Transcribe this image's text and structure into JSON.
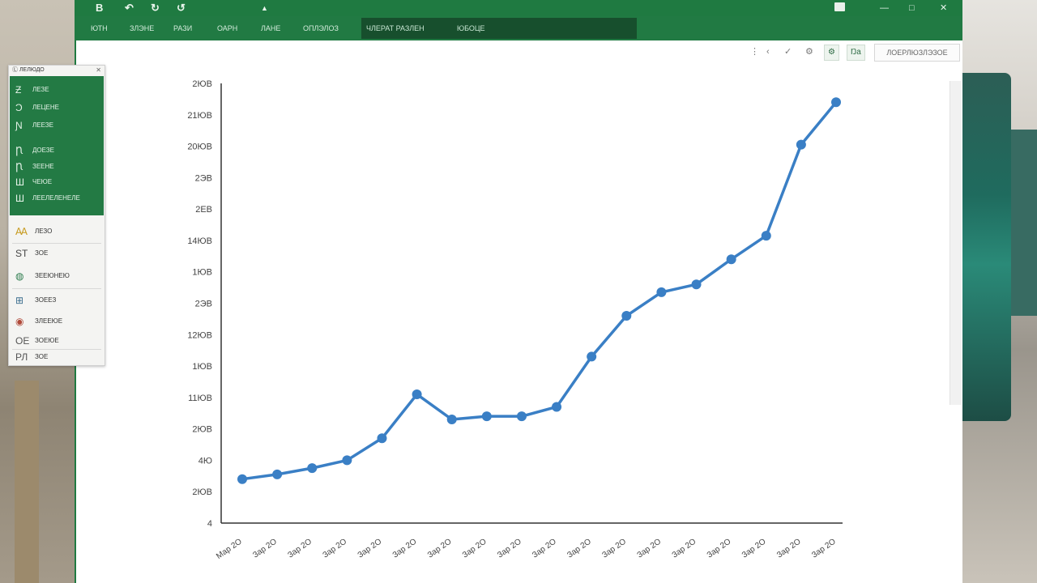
{
  "colors": {
    "ribbon_green": "#217a43",
    "selected_tab": "#174f2d",
    "series_line": "#3a7fc5",
    "axis": "#333333"
  },
  "titlebar": {
    "quick_access": [
      "B",
      "↶",
      "↻",
      "↺"
    ],
    "window_controls": [
      "—",
      "□",
      "✕"
    ]
  },
  "ribbon": {
    "tabs": [
      "ЮТН",
      "ЗЛЭНЕ",
      "РАЗИ",
      "ОАРН",
      "ЛАНЕ",
      "ОПЛЭЛОЗ"
    ],
    "selected_group": "ЧЛЕРАТ РАЗЛЕН",
    "selected_group_2": "ЮБОЦЕ"
  },
  "toolbar": {
    "icons": [
      "more-icon",
      "back-icon",
      "check-icon",
      "settings-icon"
    ],
    "button_1": "⚙",
    "button_2": "Ŋa",
    "field": "ЛОЕРЛЮЗЛЭЗОЕ"
  },
  "side_panel": {
    "header": "Ⓛ ЛЕЛЮДО",
    "green_items": [
      {
        "icon": "Ƶ",
        "label": "ЛЕЗЕ"
      },
      {
        "icon": "Ɔ",
        "label": "ЛЕЦЕНЕ"
      },
      {
        "icon": "Ɲ",
        "label": "ЛЕЕЗЕ"
      },
      {
        "icon": "Ꞃ",
        "label": "ДОЕЗЕ"
      },
      {
        "icon": "Ꞃ",
        "label": "ЗЕЕНЕ"
      },
      {
        "icon": "Ш",
        "label": "ЧЕЮЕ"
      },
      {
        "icon": "Ш",
        "label": "ЛЕЕЛЕЛЕНЕЛЕ"
      }
    ],
    "white_items": [
      {
        "icon": "Ꜳ",
        "label": "ЛЕЗО",
        "color": "#c79a1e"
      },
      {
        "icon": "ST",
        "label": "ЗОЕ",
        "color": "#444444"
      },
      {
        "icon": "◍",
        "label": "ЗЕЕЮНЕЮ",
        "color": "#2e7d4f"
      },
      {
        "icon": "⊞",
        "label": "ЗОЕЕЗ",
        "color": "#3c6e8f"
      },
      {
        "icon": "◉",
        "label": "ЗЛЕЕЮЕ",
        "color": "#b04a3a"
      },
      {
        "icon": "ОЕ",
        "label": "ЗОЕЮЕ",
        "color": "#555555"
      },
      {
        "icon": "РЛ",
        "label": "ЗОЕ",
        "color": "#555555"
      }
    ]
  },
  "chart_data": {
    "type": "line",
    "title": "",
    "xlabel": "",
    "ylabel": "",
    "grid": false,
    "x": [
      "Мар 2О",
      "Зар 2О",
      "Зар 2О",
      "Зар 2О",
      "Зар 2О",
      "Зар 2О",
      "Зар 2О",
      "Зар 2О",
      "Зар 2О",
      "Зар 2О",
      "Зар 2О",
      "Зар 2О",
      "Зар 2О",
      "Зар 2О",
      "Зар 2О",
      "Зар 2О",
      "Зар 2О",
      "Зар 2О"
    ],
    "y_ticks": [
      "2ЮВ",
      "21ЮВ",
      "20ЮВ",
      "2ЭВ",
      "2ЕВ",
      "14ЮВ",
      "1ЮВ",
      "2ЭВ",
      "12ЮВ",
      "1ЮВ",
      "11ЮВ",
      "2ЮВ",
      "4Ю",
      "2ЮВ",
      "4"
    ],
    "ylim": [
      0,
      14
    ],
    "series": [
      {
        "values": [
          1.4,
          1.55,
          1.75,
          2.0,
          2.7,
          4.1,
          3.3,
          3.4,
          3.4,
          3.7,
          5.3,
          6.6,
          7.35,
          7.6,
          8.4,
          9.15,
          12.05,
          13.4
        ]
      }
    ]
  }
}
